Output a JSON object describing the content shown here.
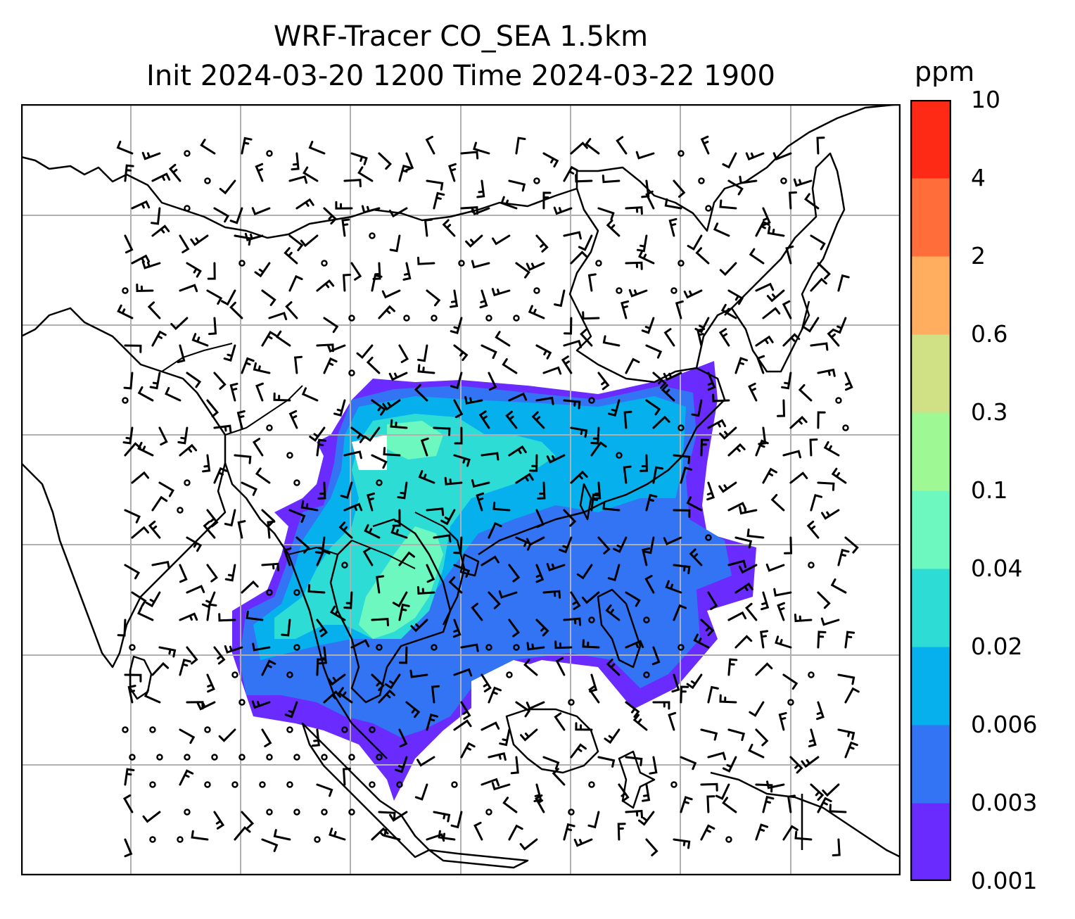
{
  "title": {
    "line1": "WRF-Tracer CO_SEA 1.5km",
    "line2": "Init 2024-03-20 1200 Time 2024-03-22 1900"
  },
  "colorbar": {
    "unit": "ppm",
    "levels": [
      "0.001",
      "0.003",
      "0.006",
      "0.02",
      "0.04",
      "0.1",
      "0.3",
      "0.6",
      "2",
      "4",
      "10"
    ],
    "colors": [
      "#6a2bff",
      "#3274f3",
      "#06b0ec",
      "#2edcd6",
      "#6cf8bf",
      "#9ef893",
      "#cfe085",
      "#ffad5f",
      "#ff6e3a",
      "#ff2a16"
    ]
  },
  "map": {
    "gridlines": true,
    "overlay": "wind barbs",
    "coastline_color": "#000000",
    "grid_color": "#b0b0b0"
  }
}
